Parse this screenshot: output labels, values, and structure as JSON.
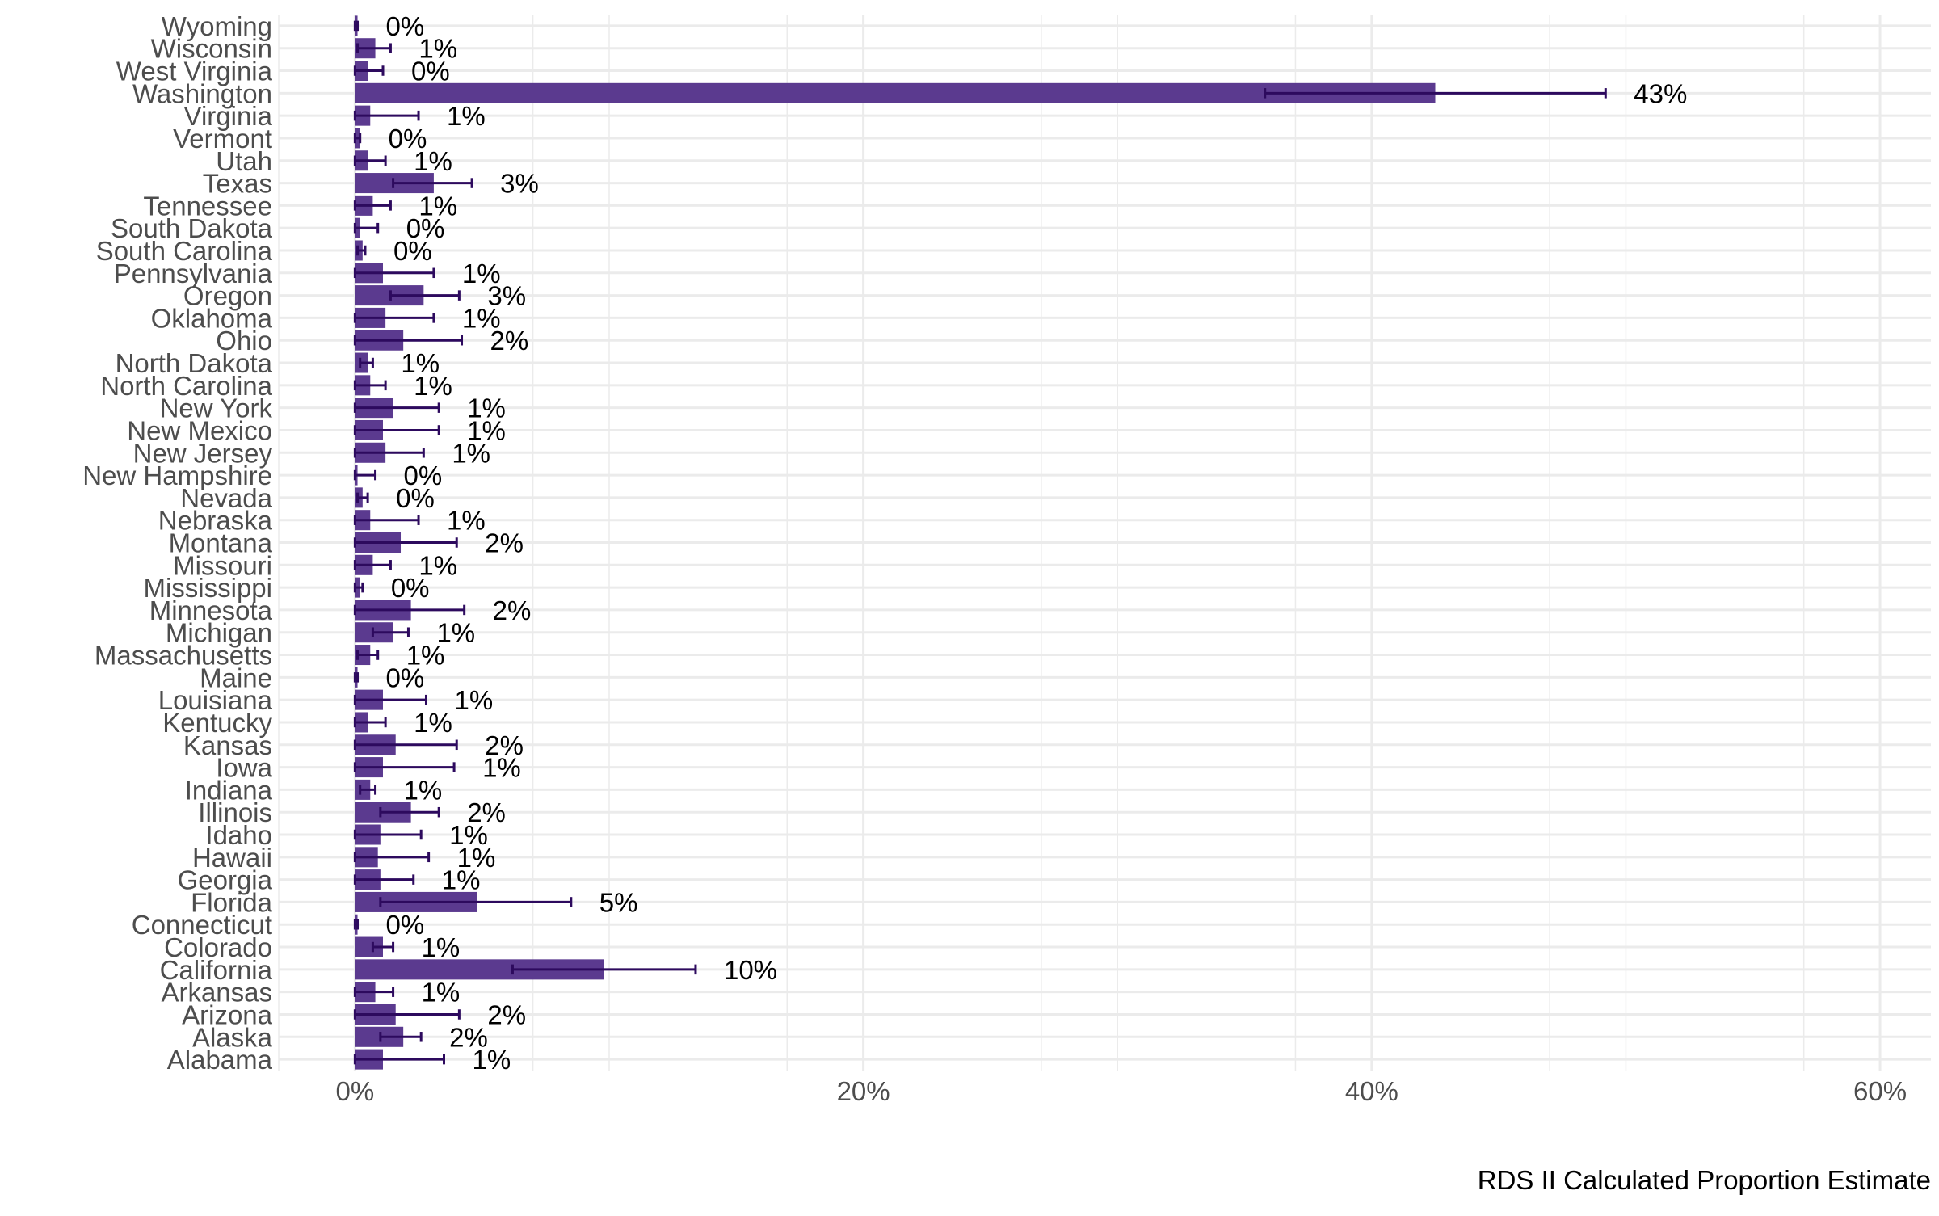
{
  "chart_data": {
    "type": "bar",
    "orientation": "horizontal",
    "title": "",
    "xlabel": "RDS II Calculated Proportion Estimate",
    "ylabel": "",
    "xlim": [
      -0.03,
      0.62
    ],
    "x_ticks": [
      0,
      0.2,
      0.4,
      0.6
    ],
    "x_tick_labels": [
      "0%",
      "20%",
      "40%",
      "60%"
    ],
    "grid": true,
    "legend": "none",
    "colors": {
      "bar": "#5b3a8f",
      "error_bar": "#2d0a5e",
      "grid": "#ebebeb"
    },
    "categories": [
      "Wyoming",
      "Wisconsin",
      "West Virginia",
      "Washington",
      "Virginia",
      "Vermont",
      "Utah",
      "Texas",
      "Tennessee",
      "South Dakota",
      "South Carolina",
      "Pennsylvania",
      "Oregon",
      "Oklahoma",
      "Ohio",
      "North Dakota",
      "North Carolina",
      "New York",
      "New Mexico",
      "New Jersey",
      "New Hampshire",
      "Nevada",
      "Nebraska",
      "Montana",
      "Missouri",
      "Mississippi",
      "Minnesota",
      "Michigan",
      "Massachusetts",
      "Maine",
      "Louisiana",
      "Kentucky",
      "Kansas",
      "Iowa",
      "Indiana",
      "Illinois",
      "Idaho",
      "Hawaii",
      "Georgia",
      "Florida",
      "Connecticut",
      "Colorado",
      "California",
      "Arkansas",
      "Arizona",
      "Alaska",
      "Alabama"
    ],
    "values": [
      0.001,
      0.008,
      0.005,
      0.425,
      0.006,
      0.002,
      0.005,
      0.031,
      0.007,
      0.002,
      0.003,
      0.011,
      0.027,
      0.012,
      0.019,
      0.005,
      0.006,
      0.015,
      0.011,
      0.012,
      0.001,
      0.003,
      0.006,
      0.018,
      0.007,
      0.002,
      0.022,
      0.015,
      0.006,
      0.001,
      0.011,
      0.005,
      0.016,
      0.011,
      0.006,
      0.022,
      0.01,
      0.009,
      0.01,
      0.048,
      0.001,
      0.011,
      0.098,
      0.008,
      0.016,
      0.019,
      0.011
    ],
    "err_low": [
      0,
      0.001,
      0,
      0.358,
      0,
      0,
      0,
      0.015,
      0,
      0,
      0.001,
      0,
      0.014,
      0,
      0,
      0.002,
      0,
      0,
      0,
      0,
      0,
      0.001,
      0,
      0,
      0,
      0,
      0,
      0.007,
      0.001,
      0,
      0,
      0,
      0,
      0,
      0.002,
      0.01,
      0,
      0,
      0,
      0.01,
      0,
      0.007,
      0.062,
      0,
      0,
      0.01,
      0
    ],
    "err_high": [
      0.001,
      0.014,
      0.011,
      0.492,
      0.025,
      0.002,
      0.012,
      0.046,
      0.014,
      0.009,
      0.004,
      0.031,
      0.041,
      0.031,
      0.042,
      0.007,
      0.012,
      0.033,
      0.033,
      0.027,
      0.008,
      0.005,
      0.025,
      0.04,
      0.014,
      0.003,
      0.043,
      0.021,
      0.009,
      0.001,
      0.028,
      0.012,
      0.04,
      0.039,
      0.008,
      0.033,
      0.026,
      0.029,
      0.023,
      0.085,
      0.001,
      0.015,
      0.134,
      0.015,
      0.041,
      0.026,
      0.035
    ],
    "labels": [
      "0%",
      "1%",
      "0%",
      "43%",
      "1%",
      "0%",
      "1%",
      "3%",
      "1%",
      "0%",
      "0%",
      "1%",
      "3%",
      "1%",
      "2%",
      "1%",
      "1%",
      "1%",
      "1%",
      "1%",
      "0%",
      "0%",
      "1%",
      "2%",
      "1%",
      "0%",
      "2%",
      "1%",
      "1%",
      "0%",
      "1%",
      "1%",
      "2%",
      "1%",
      "1%",
      "2%",
      "1%",
      "1%",
      "1%",
      "5%",
      "0%",
      "1%",
      "10%",
      "1%",
      "2%",
      "2%",
      "1%"
    ]
  }
}
